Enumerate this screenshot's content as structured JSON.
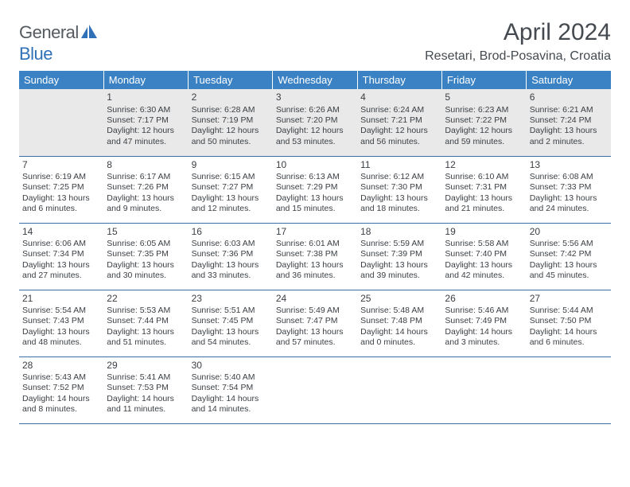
{
  "logo": {
    "text1": "General",
    "text2": "Blue"
  },
  "title": "April 2024",
  "location": "Resetari, Brod-Posavina, Croatia",
  "header_bg": "#3a82c4",
  "rule_color": "#3a6ea5",
  "shade_bg": "#e9e9e9",
  "days": [
    "Sunday",
    "Monday",
    "Tuesday",
    "Wednesday",
    "Thursday",
    "Friday",
    "Saturday"
  ],
  "weeks": [
    [
      {
        "n": "",
        "sr": "",
        "ss": "",
        "dl": ""
      },
      {
        "n": "1",
        "sr": "Sunrise: 6:30 AM",
        "ss": "Sunset: 7:17 PM",
        "dl": "Daylight: 12 hours and 47 minutes."
      },
      {
        "n": "2",
        "sr": "Sunrise: 6:28 AM",
        "ss": "Sunset: 7:19 PM",
        "dl": "Daylight: 12 hours and 50 minutes."
      },
      {
        "n": "3",
        "sr": "Sunrise: 6:26 AM",
        "ss": "Sunset: 7:20 PM",
        "dl": "Daylight: 12 hours and 53 minutes."
      },
      {
        "n": "4",
        "sr": "Sunrise: 6:24 AM",
        "ss": "Sunset: 7:21 PM",
        "dl": "Daylight: 12 hours and 56 minutes."
      },
      {
        "n": "5",
        "sr": "Sunrise: 6:23 AM",
        "ss": "Sunset: 7:22 PM",
        "dl": "Daylight: 12 hours and 59 minutes."
      },
      {
        "n": "6",
        "sr": "Sunrise: 6:21 AM",
        "ss": "Sunset: 7:24 PM",
        "dl": "Daylight: 13 hours and 2 minutes."
      }
    ],
    [
      {
        "n": "7",
        "sr": "Sunrise: 6:19 AM",
        "ss": "Sunset: 7:25 PM",
        "dl": "Daylight: 13 hours and 6 minutes."
      },
      {
        "n": "8",
        "sr": "Sunrise: 6:17 AM",
        "ss": "Sunset: 7:26 PM",
        "dl": "Daylight: 13 hours and 9 minutes."
      },
      {
        "n": "9",
        "sr": "Sunrise: 6:15 AM",
        "ss": "Sunset: 7:27 PM",
        "dl": "Daylight: 13 hours and 12 minutes."
      },
      {
        "n": "10",
        "sr": "Sunrise: 6:13 AM",
        "ss": "Sunset: 7:29 PM",
        "dl": "Daylight: 13 hours and 15 minutes."
      },
      {
        "n": "11",
        "sr": "Sunrise: 6:12 AM",
        "ss": "Sunset: 7:30 PM",
        "dl": "Daylight: 13 hours and 18 minutes."
      },
      {
        "n": "12",
        "sr": "Sunrise: 6:10 AM",
        "ss": "Sunset: 7:31 PM",
        "dl": "Daylight: 13 hours and 21 minutes."
      },
      {
        "n": "13",
        "sr": "Sunrise: 6:08 AM",
        "ss": "Sunset: 7:33 PM",
        "dl": "Daylight: 13 hours and 24 minutes."
      }
    ],
    [
      {
        "n": "14",
        "sr": "Sunrise: 6:06 AM",
        "ss": "Sunset: 7:34 PM",
        "dl": "Daylight: 13 hours and 27 minutes."
      },
      {
        "n": "15",
        "sr": "Sunrise: 6:05 AM",
        "ss": "Sunset: 7:35 PM",
        "dl": "Daylight: 13 hours and 30 minutes."
      },
      {
        "n": "16",
        "sr": "Sunrise: 6:03 AM",
        "ss": "Sunset: 7:36 PM",
        "dl": "Daylight: 13 hours and 33 minutes."
      },
      {
        "n": "17",
        "sr": "Sunrise: 6:01 AM",
        "ss": "Sunset: 7:38 PM",
        "dl": "Daylight: 13 hours and 36 minutes."
      },
      {
        "n": "18",
        "sr": "Sunrise: 5:59 AM",
        "ss": "Sunset: 7:39 PM",
        "dl": "Daylight: 13 hours and 39 minutes."
      },
      {
        "n": "19",
        "sr": "Sunrise: 5:58 AM",
        "ss": "Sunset: 7:40 PM",
        "dl": "Daylight: 13 hours and 42 minutes."
      },
      {
        "n": "20",
        "sr": "Sunrise: 5:56 AM",
        "ss": "Sunset: 7:42 PM",
        "dl": "Daylight: 13 hours and 45 minutes."
      }
    ],
    [
      {
        "n": "21",
        "sr": "Sunrise: 5:54 AM",
        "ss": "Sunset: 7:43 PM",
        "dl": "Daylight: 13 hours and 48 minutes."
      },
      {
        "n": "22",
        "sr": "Sunrise: 5:53 AM",
        "ss": "Sunset: 7:44 PM",
        "dl": "Daylight: 13 hours and 51 minutes."
      },
      {
        "n": "23",
        "sr": "Sunrise: 5:51 AM",
        "ss": "Sunset: 7:45 PM",
        "dl": "Daylight: 13 hours and 54 minutes."
      },
      {
        "n": "24",
        "sr": "Sunrise: 5:49 AM",
        "ss": "Sunset: 7:47 PM",
        "dl": "Daylight: 13 hours and 57 minutes."
      },
      {
        "n": "25",
        "sr": "Sunrise: 5:48 AM",
        "ss": "Sunset: 7:48 PM",
        "dl": "Daylight: 14 hours and 0 minutes."
      },
      {
        "n": "26",
        "sr": "Sunrise: 5:46 AM",
        "ss": "Sunset: 7:49 PM",
        "dl": "Daylight: 14 hours and 3 minutes."
      },
      {
        "n": "27",
        "sr": "Sunrise: 5:44 AM",
        "ss": "Sunset: 7:50 PM",
        "dl": "Daylight: 14 hours and 6 minutes."
      }
    ],
    [
      {
        "n": "28",
        "sr": "Sunrise: 5:43 AM",
        "ss": "Sunset: 7:52 PM",
        "dl": "Daylight: 14 hours and 8 minutes."
      },
      {
        "n": "29",
        "sr": "Sunrise: 5:41 AM",
        "ss": "Sunset: 7:53 PM",
        "dl": "Daylight: 14 hours and 11 minutes."
      },
      {
        "n": "30",
        "sr": "Sunrise: 5:40 AM",
        "ss": "Sunset: 7:54 PM",
        "dl": "Daylight: 14 hours and 14 minutes."
      },
      {
        "n": "",
        "sr": "",
        "ss": "",
        "dl": ""
      },
      {
        "n": "",
        "sr": "",
        "ss": "",
        "dl": ""
      },
      {
        "n": "",
        "sr": "",
        "ss": "",
        "dl": ""
      },
      {
        "n": "",
        "sr": "",
        "ss": "",
        "dl": ""
      }
    ]
  ]
}
